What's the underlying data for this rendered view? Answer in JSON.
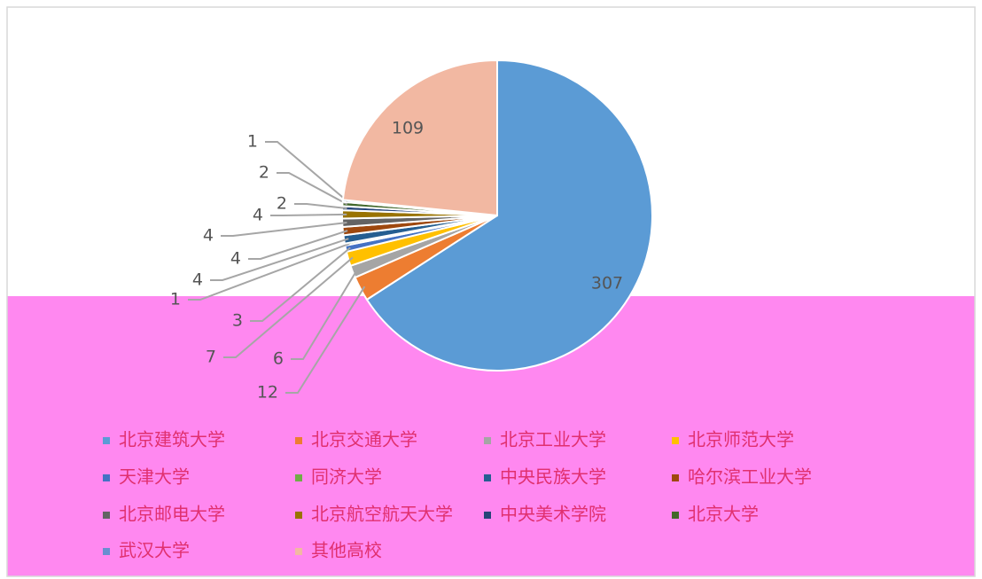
{
  "chart_data": {
    "type": "pie",
    "categories": [
      "北京建筑大学",
      "北京交通大学",
      "北京工业大学",
      "北京师范大学",
      "天津大学",
      "同济大学",
      "中央民族大学",
      "哈尔滨工业大学",
      "北京邮电大学",
      "北京航空航天大学",
      "中央美术学院",
      "北京大学",
      "武汉大学",
      "其他高校"
    ],
    "values": [
      307,
      12,
      6,
      7,
      3,
      1,
      4,
      4,
      4,
      4,
      2,
      2,
      1,
      109
    ],
    "colors": [
      "#5b9bd5",
      "#ed7d31",
      "#a5a5a5",
      "#ffc000",
      "#4472c4",
      "#70ad47",
      "#255e91",
      "#9e480e",
      "#636363",
      "#997300",
      "#264478",
      "#43682b",
      "#698ed0",
      "#f2b8a2"
    ]
  }
}
